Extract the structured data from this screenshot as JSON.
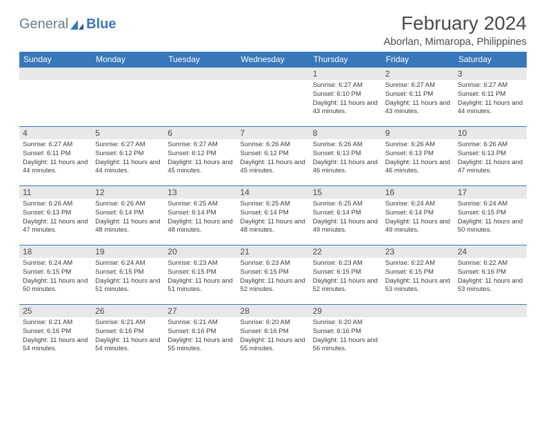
{
  "logo": {
    "text_general": "General",
    "text_blue": "Blue"
  },
  "title": "February 2024",
  "location": "Aborlan, Mimaropa, Philippines",
  "colors": {
    "header_bg": "#3878b8",
    "header_text": "#ffffff",
    "daynum_bg": "#e8e8e8",
    "row_border": "#3878b8",
    "body_text": "#3a3a3a",
    "logo_gray": "#6b7a88",
    "logo_blue": "#3878b8"
  },
  "weekdays": [
    "Sunday",
    "Monday",
    "Tuesday",
    "Wednesday",
    "Thursday",
    "Friday",
    "Saturday"
  ],
  "weeks": [
    [
      {
        "empty": true
      },
      {
        "empty": true
      },
      {
        "empty": true
      },
      {
        "empty": true
      },
      {
        "day": "1",
        "sunrise": "Sunrise: 6:27 AM",
        "sunset": "Sunset: 6:10 PM",
        "daylight": "Daylight: 11 hours and 43 minutes."
      },
      {
        "day": "2",
        "sunrise": "Sunrise: 6:27 AM",
        "sunset": "Sunset: 6:11 PM",
        "daylight": "Daylight: 11 hours and 43 minutes."
      },
      {
        "day": "3",
        "sunrise": "Sunrise: 6:27 AM",
        "sunset": "Sunset: 6:11 PM",
        "daylight": "Daylight: 11 hours and 44 minutes."
      }
    ],
    [
      {
        "day": "4",
        "sunrise": "Sunrise: 6:27 AM",
        "sunset": "Sunset: 6:11 PM",
        "daylight": "Daylight: 11 hours and 44 minutes."
      },
      {
        "day": "5",
        "sunrise": "Sunrise: 6:27 AM",
        "sunset": "Sunset: 6:12 PM",
        "daylight": "Daylight: 11 hours and 44 minutes."
      },
      {
        "day": "6",
        "sunrise": "Sunrise: 6:27 AM",
        "sunset": "Sunset: 6:12 PM",
        "daylight": "Daylight: 11 hours and 45 minutes."
      },
      {
        "day": "7",
        "sunrise": "Sunrise: 6:26 AM",
        "sunset": "Sunset: 6:12 PM",
        "daylight": "Daylight: 11 hours and 45 minutes."
      },
      {
        "day": "8",
        "sunrise": "Sunrise: 6:26 AM",
        "sunset": "Sunset: 6:13 PM",
        "daylight": "Daylight: 11 hours and 46 minutes."
      },
      {
        "day": "9",
        "sunrise": "Sunrise: 6:26 AM",
        "sunset": "Sunset: 6:13 PM",
        "daylight": "Daylight: 11 hours and 46 minutes."
      },
      {
        "day": "10",
        "sunrise": "Sunrise: 6:26 AM",
        "sunset": "Sunset: 6:13 PM",
        "daylight": "Daylight: 11 hours and 47 minutes."
      }
    ],
    [
      {
        "day": "11",
        "sunrise": "Sunrise: 6:26 AM",
        "sunset": "Sunset: 6:13 PM",
        "daylight": "Daylight: 11 hours and 47 minutes."
      },
      {
        "day": "12",
        "sunrise": "Sunrise: 6:26 AM",
        "sunset": "Sunset: 6:14 PM",
        "daylight": "Daylight: 11 hours and 48 minutes."
      },
      {
        "day": "13",
        "sunrise": "Sunrise: 6:25 AM",
        "sunset": "Sunset: 6:14 PM",
        "daylight": "Daylight: 11 hours and 48 minutes."
      },
      {
        "day": "14",
        "sunrise": "Sunrise: 6:25 AM",
        "sunset": "Sunset: 6:14 PM",
        "daylight": "Daylight: 11 hours and 48 minutes."
      },
      {
        "day": "15",
        "sunrise": "Sunrise: 6:25 AM",
        "sunset": "Sunset: 6:14 PM",
        "daylight": "Daylight: 11 hours and 49 minutes."
      },
      {
        "day": "16",
        "sunrise": "Sunrise: 6:24 AM",
        "sunset": "Sunset: 6:14 PM",
        "daylight": "Daylight: 11 hours and 49 minutes."
      },
      {
        "day": "17",
        "sunrise": "Sunrise: 6:24 AM",
        "sunset": "Sunset: 6:15 PM",
        "daylight": "Daylight: 11 hours and 50 minutes."
      }
    ],
    [
      {
        "day": "18",
        "sunrise": "Sunrise: 6:24 AM",
        "sunset": "Sunset: 6:15 PM",
        "daylight": "Daylight: 11 hours and 50 minutes."
      },
      {
        "day": "19",
        "sunrise": "Sunrise: 6:24 AM",
        "sunset": "Sunset: 6:15 PM",
        "daylight": "Daylight: 11 hours and 51 minutes."
      },
      {
        "day": "20",
        "sunrise": "Sunrise: 6:23 AM",
        "sunset": "Sunset: 6:15 PM",
        "daylight": "Daylight: 11 hours and 51 minutes."
      },
      {
        "day": "21",
        "sunrise": "Sunrise: 6:23 AM",
        "sunset": "Sunset: 6:15 PM",
        "daylight": "Daylight: 11 hours and 52 minutes."
      },
      {
        "day": "22",
        "sunrise": "Sunrise: 6:23 AM",
        "sunset": "Sunset: 6:15 PM",
        "daylight": "Daylight: 11 hours and 52 minutes."
      },
      {
        "day": "23",
        "sunrise": "Sunrise: 6:22 AM",
        "sunset": "Sunset: 6:15 PM",
        "daylight": "Daylight: 11 hours and 53 minutes."
      },
      {
        "day": "24",
        "sunrise": "Sunrise: 6:22 AM",
        "sunset": "Sunset: 6:16 PM",
        "daylight": "Daylight: 11 hours and 53 minutes."
      }
    ],
    [
      {
        "day": "25",
        "sunrise": "Sunrise: 6:21 AM",
        "sunset": "Sunset: 6:16 PM",
        "daylight": "Daylight: 11 hours and 54 minutes."
      },
      {
        "day": "26",
        "sunrise": "Sunrise: 6:21 AM",
        "sunset": "Sunset: 6:16 PM",
        "daylight": "Daylight: 11 hours and 54 minutes."
      },
      {
        "day": "27",
        "sunrise": "Sunrise: 6:21 AM",
        "sunset": "Sunset: 6:16 PM",
        "daylight": "Daylight: 11 hours and 55 minutes."
      },
      {
        "day": "28",
        "sunrise": "Sunrise: 6:20 AM",
        "sunset": "Sunset: 6:16 PM",
        "daylight": "Daylight: 11 hours and 55 minutes."
      },
      {
        "day": "29",
        "sunrise": "Sunrise: 6:20 AM",
        "sunset": "Sunset: 6:16 PM",
        "daylight": "Daylight: 11 hours and 56 minutes."
      },
      {
        "empty": true
      },
      {
        "empty": true
      }
    ]
  ]
}
